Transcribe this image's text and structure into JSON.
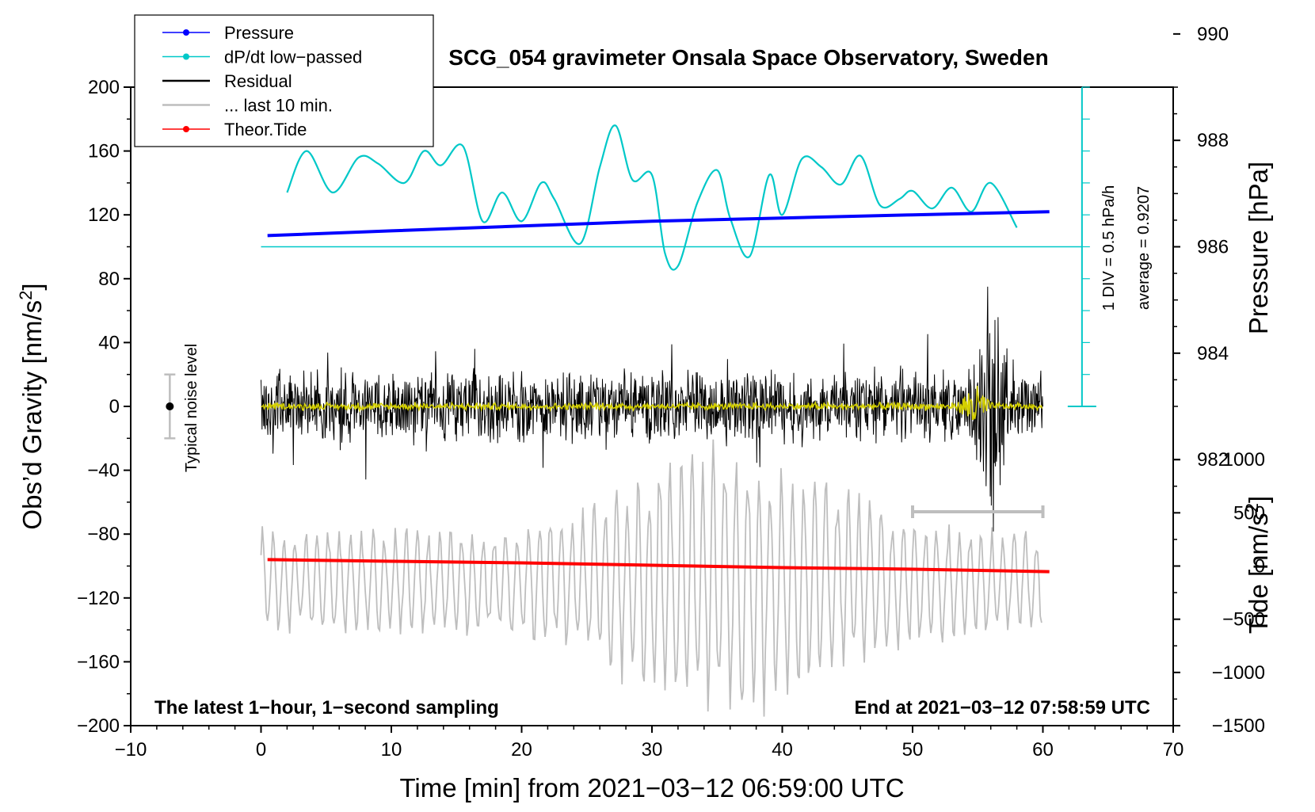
{
  "chart_data": {
    "type": "line",
    "title": "SCG_054 gravimeter Onsala Space Observatory, Sweden",
    "xlabel": "Time [min] from 2021−03−12 06:59:00 UTC",
    "ylabel_left": "Obs’d Gravity [nm/s²]",
    "ylabel_left_main": "Obs’d Gravity [nm/s",
    "ylabel_left_sup": "2",
    "ylabel_left_end": "]",
    "ylabel_pressure": "Pressure [hPa]",
    "ylabel_tide_main": "Tide [nm/s",
    "ylabel_tide_sup": "2",
    "ylabel_tide_end": "]",
    "xlim": [
      -10,
      70
    ],
    "ylim_left": [
      -200,
      200
    ],
    "x_ticks": [
      -10,
      0,
      10,
      20,
      30,
      40,
      50,
      60,
      70
    ],
    "x_tick_labels": [
      "−10",
      "0",
      "10",
      "20",
      "30",
      "40",
      "50",
      "60",
      "70"
    ],
    "y_ticks_left": [
      200,
      160,
      120,
      80,
      40,
      0,
      -40,
      -80,
      -120,
      -160,
      -200
    ],
    "y_tick_labels_left": [
      "200",
      "160",
      "120",
      "80",
      "40",
      "0",
      "−40",
      "−80",
      "−120",
      "−160",
      "−200"
    ],
    "pressure_axis": {
      "ticks": [
        990,
        988,
        986,
        984,
        982
      ],
      "tick_labels": [
        "990",
        "988",
        "986",
        "984",
        "982"
      ],
      "ref": {
        "hPa": 986,
        "gravity": 100
      },
      "gravity_per_hPa": 33.33
    },
    "tide_axis": {
      "ticks": [
        1000,
        500,
        0,
        -500,
        -1000,
        -1500
      ],
      "tick_labels": [
        "1000",
        "500",
        "0",
        "−500",
        "−1000",
        "−1500"
      ],
      "ref": {
        "tide": 0,
        "gravity": -100
      },
      "gravity_per_unit": 0.0666667
    },
    "annotations": {
      "left_corner": "The latest 1−hour, 1−second sampling",
      "right_corner": "End at 2021−03−12 07:58:59 UTC",
      "noise_label": "Typical noise level",
      "div_label": "1 DIV = 0.5 hPa/h",
      "average_label": "average = 0.9207"
    },
    "legend": [
      {
        "label": "Pressure",
        "color": "#0000ff",
        "style": "line-dot"
      },
      {
        "label": "dP/dt low−passed",
        "color": "#00c8c8",
        "style": "line-dot"
      },
      {
        "label": "Residual",
        "color": "#000000",
        "style": "line"
      },
      {
        "label": "... last 10 min.",
        "color": "#bebebe",
        "style": "line"
      },
      {
        "label": "Theor.Tide",
        "color": "#ff0000",
        "style": "line-dot"
      }
    ],
    "series": [
      {
        "name": "Pressure",
        "color": "#0000ff",
        "unit": "gravity-equivalent",
        "x": [
          0.5,
          10,
          20,
          30,
          40,
          50,
          60.5
        ],
        "y": [
          107,
          110,
          113,
          116,
          118,
          120,
          122
        ]
      },
      {
        "name": "dP/dt low−passed",
        "color": "#00c8c8",
        "unit": "gravity-equivalent",
        "x": [
          2,
          3.5,
          5.5,
          7.5,
          9,
          11,
          12.5,
          13.8,
          15.5,
          17,
          18.5,
          20,
          21.5,
          22.5,
          24.5,
          26,
          27.2,
          28.5,
          30,
          31,
          32,
          33.5,
          35,
          36,
          37.5,
          39,
          40,
          41.5,
          43,
          44.5,
          46,
          47.5,
          49,
          50,
          51.5,
          53,
          54.5,
          56,
          58
        ],
        "y": [
          134,
          160,
          134,
          156,
          152,
          140,
          160,
          151,
          163,
          116,
          134,
          116,
          140,
          130,
          102,
          150,
          176,
          142,
          145,
          96,
          88,
          128,
          148,
          118,
          94,
          145,
          120,
          155,
          150,
          139,
          157,
          126,
          130,
          135,
          124,
          137,
          122,
          140,
          112
        ]
      },
      {
        "name": "Theor.Tide",
        "color": "#ff0000",
        "unit": "gravity-equivalent",
        "x": [
          0.5,
          10,
          20,
          30,
          40,
          50,
          60.5
        ],
        "y": [
          -96,
          -97,
          -98,
          -99.5,
          -101,
          -102,
          -103.5
        ]
      },
      {
        "name": "Residual",
        "color": "#000000",
        "x_range": [
          0,
          60
        ],
        "noise_amplitude": 18,
        "event": {
          "x_range": [
            53,
            59
          ],
          "peak_amplitude": 90
        }
      },
      {
        "name": "Residual (low-passed)",
        "color": "#d4d000",
        "x_range": [
          0,
          60
        ],
        "noise_amplitude": 2,
        "event": {
          "x_range": [
            53,
            56.5
          ],
          "peak_amplitude": 14
        }
      },
      {
        "name": "... last 10 min.",
        "color": "#bebebe",
        "x_range": [
          0,
          60
        ],
        "base": -110,
        "amplitude_start": 35,
        "amplitude_peak": 95,
        "peak_x": 36
      }
    ],
    "last10_bar": {
      "x": [
        50,
        60
      ],
      "y": -66
    },
    "noise_bar": {
      "x": -7,
      "y_center": 0,
      "half_range": 20
    },
    "pressure_scale_bar": {
      "x": 63,
      "y_top": 200,
      "y_bottom": 0,
      "divisions": 10
    },
    "reference_line": {
      "y": 100,
      "x_range": [
        0,
        63
      ],
      "color": "#00c8c8"
    }
  }
}
